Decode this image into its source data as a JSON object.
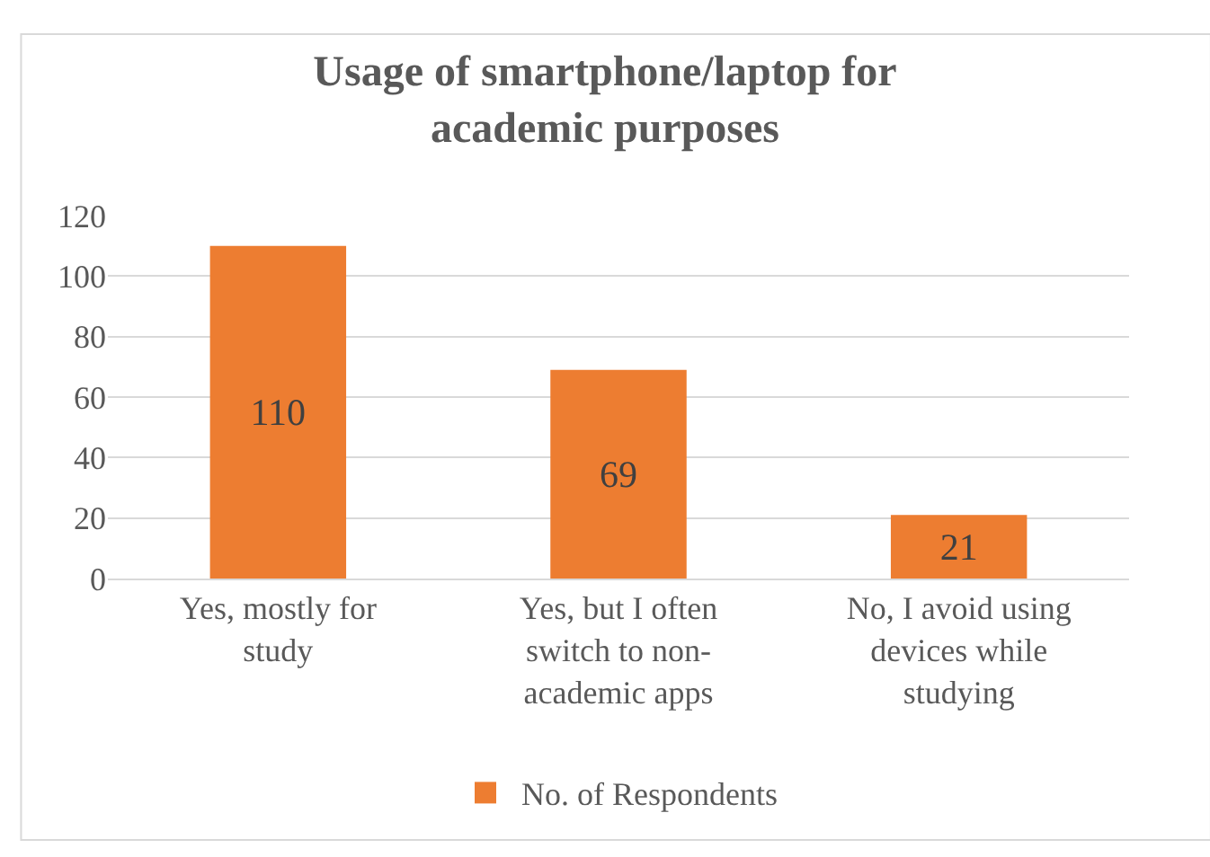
{
  "chart_data": {
    "type": "bar",
    "title": "Usage of smartphone/laptop for academic purposes",
    "categories": [
      "Yes, mostly for study",
      "Yes, but I often switch to non-academic apps",
      "No, I avoid using devices while studying"
    ],
    "series": [
      {
        "name": "No. of Respondents",
        "color": "#ed7d31",
        "values": [
          110,
          69,
          21
        ]
      }
    ],
    "ylim": [
      0,
      120
    ],
    "yticks": [
      0,
      20,
      40,
      60,
      80,
      100,
      120
    ],
    "grid": "y",
    "legend": "bottom",
    "data_labels": true
  }
}
